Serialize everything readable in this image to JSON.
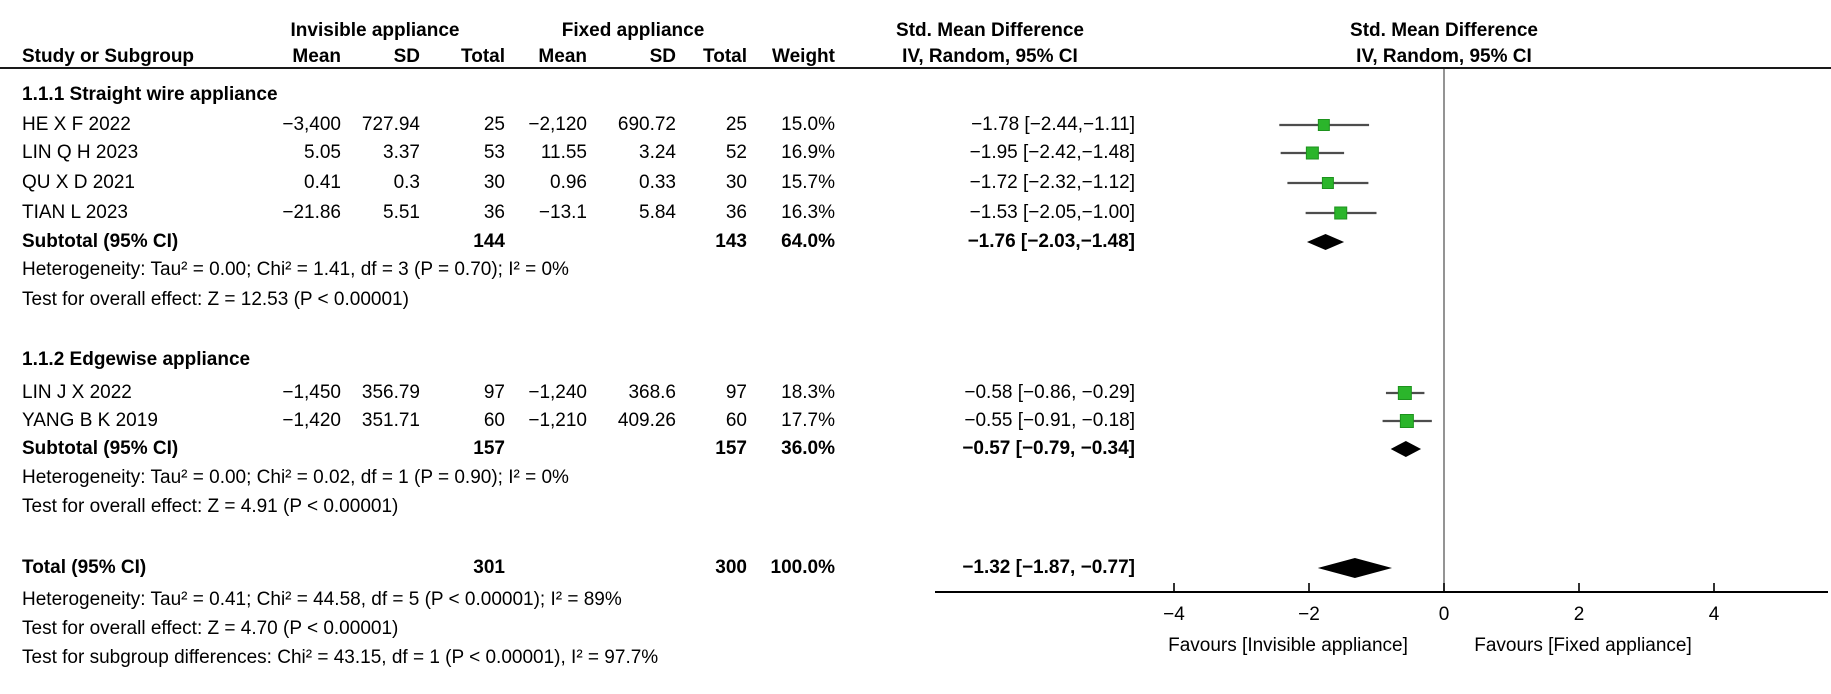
{
  "header": {
    "group1": "Invisible appliance",
    "group2": "Fixed appliance",
    "smd_title": "Std. Mean Difference",
    "smd_method": "IV, Random, 95% CI",
    "col_study": "Study or Subgroup",
    "col_mean": "Mean",
    "col_sd": "SD",
    "col_total": "Total",
    "col_weight": "Weight"
  },
  "table": {
    "s1": {
      "label": "1.1.1 Straight wire appliance",
      "rows": [
        {
          "study": "HE X F 2022",
          "mean1": "−3,400",
          "sd1": "727.94",
          "n1": "25",
          "mean2": "−2,120",
          "sd2": "690.72",
          "n2": "25",
          "weight": "15.0%",
          "ci": "−1.78 [−2.44,−1.11]"
        },
        {
          "study": "LIN Q H 2023",
          "mean1": "5.05",
          "sd1": "3.37",
          "n1": "53",
          "mean2": "11.55",
          "sd2": "3.24",
          "n2": "52",
          "weight": "16.9%",
          "ci": "−1.95 [−2.42,−1.48]"
        },
        {
          "study": "QU X D 2021",
          "mean1": "0.41",
          "sd1": "0.3",
          "n1": "30",
          "mean2": "0.96",
          "sd2": "0.33",
          "n2": "30",
          "weight": "15.7%",
          "ci": "−1.72 [−2.32,−1.12]"
        },
        {
          "study": "TIAN L 2023",
          "mean1": "−21.86",
          "sd1": "5.51",
          "n1": "36",
          "mean2": "−13.1",
          "sd2": "5.84",
          "n2": "36",
          "weight": "16.3%",
          "ci": "−1.53 [−2.05,−1.00]"
        }
      ],
      "subtotal": {
        "label": "Subtotal (95% CI)",
        "n1": "144",
        "n2": "143",
        "weight": "64.0%",
        "ci": "−1.76 [−2.03,−1.48]"
      },
      "heterogeneity": "Heterogeneity: Tau² = 0.00; Chi² = 1.41, df = 3 (P = 0.70); I² = 0%",
      "overall": "Test for overall effect: Z = 12.53 (P < 0.00001)"
    },
    "s2": {
      "label": "1.1.2 Edgewise appliance",
      "rows": [
        {
          "study": "LIN J X 2022",
          "mean1": "−1,450",
          "sd1": "356.79",
          "n1": "97",
          "mean2": "−1,240",
          "sd2": "368.6",
          "n2": "97",
          "weight": "18.3%",
          "ci": "−0.58 [−0.86, −0.29]"
        },
        {
          "study": "YANG B K 2019",
          "mean1": "−1,420",
          "sd1": "351.71",
          "n1": "60",
          "mean2": "−1,210",
          "sd2": "409.26",
          "n2": "60",
          "weight": "17.7%",
          "ci": "−0.55 [−0.91, −0.18]"
        }
      ],
      "subtotal": {
        "label": "Subtotal (95% CI)",
        "n1": "157",
        "n2": "157",
        "weight": "36.0%",
        "ci": "−0.57 [−0.79, −0.34]"
      },
      "heterogeneity": "Heterogeneity: Tau² = 0.00; Chi² = 0.02, df = 1 (P = 0.90); I² = 0%",
      "overall": "Test for overall effect: Z = 4.91 (P < 0.00001)"
    },
    "total_row": {
      "label": "Total (95% CI)",
      "n1": "301",
      "n2": "300",
      "weight": "100.0%",
      "ci": "−1.32 [−1.87, −0.77]"
    },
    "total_heterogeneity": "Heterogeneity: Tau² = 0.41; Chi² = 44.58, df = 5 (P < 0.00001); I² = 89%",
    "total_overall": "Test for overall effect: Z = 4.70 (P < 0.00001)",
    "subgroup_diff": "Test for subgroup differences: Chi² = 43.15, df = 1 (P < 0.00001), I² = 97.7%"
  },
  "axis": {
    "ticks": [
      {
        "v": -4,
        "label": "−4"
      },
      {
        "v": -2,
        "label": "−2"
      },
      {
        "v": 0,
        "label": "0"
      },
      {
        "v": 2,
        "label": "2"
      },
      {
        "v": 4,
        "label": "4"
      }
    ],
    "favours_left": "Favours [Invisible appliance]",
    "favours_right": "Favours [Fixed appliance]"
  },
  "colors": {
    "square": "#2bb52b",
    "square_border": "#1d921d",
    "ci_line": "#4d4d4d",
    "diamond": "#000000",
    "axis": "#000000",
    "zero_line": "#666666"
  },
  "chart_data": {
    "type": "scatter",
    "subtype": "forest-plot",
    "effect_measure": "Std. Mean Difference, IV, Random, 95% CI",
    "xlim": [
      -7.6,
      5.7
    ],
    "x_ticks": [
      -4,
      -2,
      0,
      2,
      4
    ],
    "x_axis_labels": {
      "left": "Favours [Invisible appliance]",
      "right": "Favours [Fixed appliance]"
    },
    "subgroups": [
      {
        "name": "1.1.1 Straight wire appliance",
        "studies": [
          {
            "study": "HE X F 2022",
            "mean1": -3400,
            "sd1": 727.94,
            "n1": 25,
            "mean2": -2120,
            "sd2": 690.72,
            "n2": 25,
            "weight_pct": 15.0,
            "smd": -1.78,
            "ci_low": -2.44,
            "ci_high": -1.11
          },
          {
            "study": "LIN Q H 2023",
            "mean1": 5.05,
            "sd1": 3.37,
            "n1": 53,
            "mean2": 11.55,
            "sd2": 3.24,
            "n2": 52,
            "weight_pct": 16.9,
            "smd": -1.95,
            "ci_low": -2.42,
            "ci_high": -1.48
          },
          {
            "study": "QU X D 2021",
            "mean1": 0.41,
            "sd1": 0.3,
            "n1": 30,
            "mean2": 0.96,
            "sd2": 0.33,
            "n2": 30,
            "weight_pct": 15.7,
            "smd": -1.72,
            "ci_low": -2.32,
            "ci_high": -1.12
          },
          {
            "study": "TIAN L 2023",
            "mean1": -21.86,
            "sd1": 5.51,
            "n1": 36,
            "mean2": -13.1,
            "sd2": 5.84,
            "n2": 36,
            "weight_pct": 16.3,
            "smd": -1.53,
            "ci_low": -2.05,
            "ci_high": -1.0
          }
        ],
        "subtotal": {
          "n1": 144,
          "n2": 143,
          "weight_pct": 64.0,
          "smd": -1.76,
          "ci_low": -2.03,
          "ci_high": -1.48
        },
        "tau2": 0.0,
        "chi2": 1.41,
        "df": 3,
        "p_het": 0.7,
        "i2_pct": 0,
        "z": 12.53,
        "p_overall": "<0.00001"
      },
      {
        "name": "1.1.2 Edgewise appliance",
        "studies": [
          {
            "study": "LIN J X 2022",
            "mean1": -1450,
            "sd1": 356.79,
            "n1": 97,
            "mean2": -1240,
            "sd2": 368.6,
            "n2": 97,
            "weight_pct": 18.3,
            "smd": -0.58,
            "ci_low": -0.86,
            "ci_high": -0.29
          },
          {
            "study": "YANG B K 2019",
            "mean1": -1420,
            "sd1": 351.71,
            "n1": 60,
            "mean2": -1210,
            "sd2": 409.26,
            "n2": 60,
            "weight_pct": 17.7,
            "smd": -0.55,
            "ci_low": -0.91,
            "ci_high": -0.18
          }
        ],
        "subtotal": {
          "n1": 157,
          "n2": 157,
          "weight_pct": 36.0,
          "smd": -0.57,
          "ci_low": -0.79,
          "ci_high": -0.34
        },
        "tau2": 0.0,
        "chi2": 0.02,
        "df": 1,
        "p_het": 0.9,
        "i2_pct": 0,
        "z": 4.91,
        "p_overall": "<0.00001"
      }
    ],
    "total": {
      "n1": 301,
      "n2": 300,
      "weight_pct": 100.0,
      "smd": -1.32,
      "ci_low": -1.87,
      "ci_high": -0.77,
      "tau2": 0.41,
      "chi2": 44.58,
      "df": 5,
      "p_het": "<0.00001",
      "i2_pct": 89,
      "z": 4.7,
      "p_overall": "<0.00001"
    },
    "subgroup_differences": {
      "chi2": 43.15,
      "df": 1,
      "p": "<0.00001",
      "i2_pct": 97.7
    }
  }
}
